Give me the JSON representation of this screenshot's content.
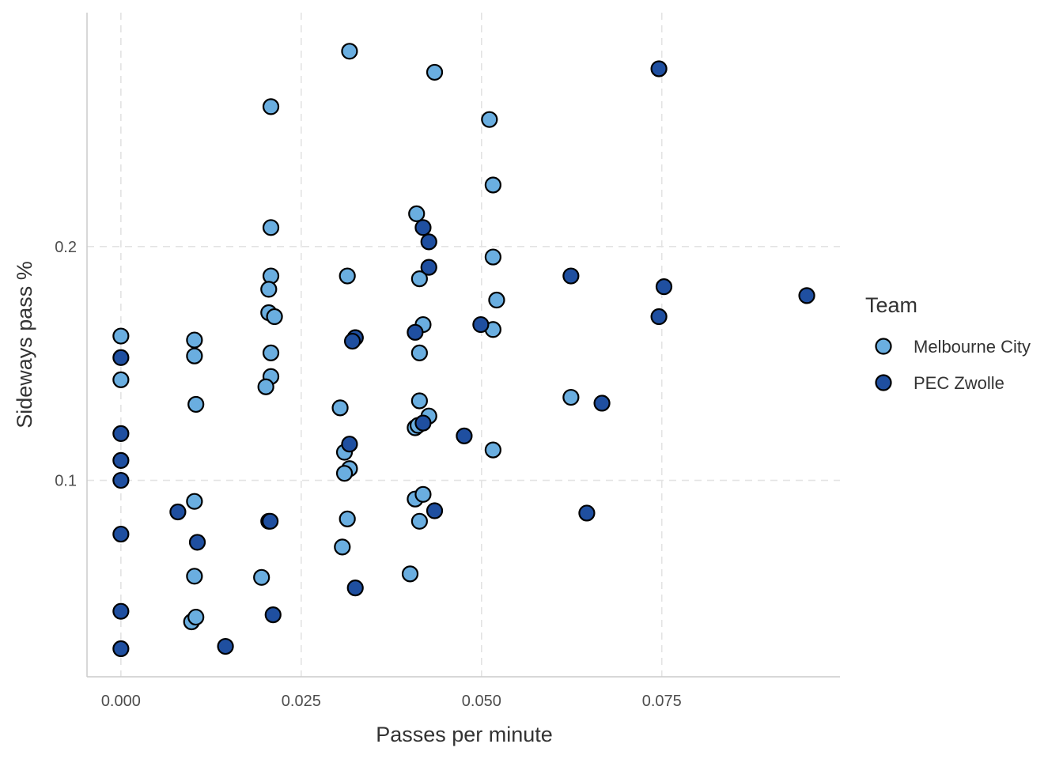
{
  "chart_data": {
    "type": "scatter",
    "xlabel": "Passes per minute",
    "ylabel": "Sideways pass %",
    "xlim": [
      -0.0047,
      0.0997
    ],
    "ylim": [
      0.016,
      0.3
    ],
    "x_ticks": [
      0.0,
      0.025,
      0.05,
      0.075
    ],
    "x_tick_labels": [
      "0.000",
      "0.025",
      "0.050",
      "0.075"
    ],
    "y_ticks": [
      0.1,
      0.2
    ],
    "y_tick_labels": [
      "0.1",
      "0.2"
    ],
    "grid": true,
    "legend": {
      "title": "Team",
      "position": "right",
      "entries": [
        {
          "name": "Melbourne City",
          "color": "#6aaee0"
        },
        {
          "name": "PEC Zwolle",
          "color": "#1f4fa0"
        }
      ]
    },
    "series": [
      {
        "name": "Melbourne City",
        "color": "#6aaee0",
        "points": [
          [
            0.0317,
            0.2835
          ],
          [
            0.0435,
            0.2745
          ],
          [
            0.0208,
            0.2598
          ],
          [
            0.0511,
            0.2543
          ],
          [
            0.0516,
            0.2263
          ],
          [
            0.041,
            0.214
          ],
          [
            0.0208,
            0.2081
          ],
          [
            0.0516,
            0.1955
          ],
          [
            0.0208,
            0.1874
          ],
          [
            0.0314,
            0.1874
          ],
          [
            0.0414,
            0.1862
          ],
          [
            0.0205,
            0.1817
          ],
          [
            0.0521,
            0.1771
          ],
          [
            0.0205,
            0.1717
          ],
          [
            0.0213,
            0.17
          ],
          [
            0.0419,
            0.1666
          ],
          [
            0.0516,
            0.1645
          ],
          [
            0.0,
            0.1617
          ],
          [
            0.0102,
            0.16
          ],
          [
            0.0325,
            0.161
          ],
          [
            0.0208,
            0.1545
          ],
          [
            0.0414,
            0.1545
          ],
          [
            0.0102,
            0.1532
          ],
          [
            0.0,
            0.143
          ],
          [
            0.0208,
            0.1444
          ],
          [
            0.0201,
            0.14
          ],
          [
            0.0414,
            0.134
          ],
          [
            0.0104,
            0.1325
          ],
          [
            0.0304,
            0.131
          ],
          [
            0.0427,
            0.1275
          ],
          [
            0.0408,
            0.1225
          ],
          [
            0.0412,
            0.1235
          ],
          [
            0.031,
            0.112
          ],
          [
            0.0516,
            0.113
          ],
          [
            0.0317,
            0.105
          ],
          [
            0.031,
            0.103
          ],
          [
            0.0408,
            0.092
          ],
          [
            0.0419,
            0.094
          ],
          [
            0.0102,
            0.091
          ],
          [
            0.0314,
            0.0835
          ],
          [
            0.0414,
            0.0825
          ],
          [
            0.0307,
            0.0715
          ],
          [
            0.0102,
            0.059
          ],
          [
            0.0195,
            0.0585
          ],
          [
            0.0401,
            0.06
          ],
          [
            0.0098,
            0.0395
          ],
          [
            0.0104,
            0.0415
          ],
          [
            0.0624,
            0.1355
          ]
        ]
      },
      {
        "name": "PEC Zwolle",
        "color": "#1f4fa0",
        "points": [
          [
            0.0746,
            0.276
          ],
          [
            0.0419,
            0.2081
          ],
          [
            0.0427,
            0.202
          ],
          [
            0.0427,
            0.1911
          ],
          [
            0.0624,
            0.1874
          ],
          [
            0.0753,
            0.1828
          ],
          [
            0.0951,
            0.179
          ],
          [
            0.0746,
            0.17
          ],
          [
            0.0499,
            0.1666
          ],
          [
            0.0408,
            0.1633
          ],
          [
            0.0325,
            0.161
          ],
          [
            0.0321,
            0.1595
          ],
          [
            0.0,
            0.1525
          ],
          [
            0.0667,
            0.133
          ],
          [
            0.0419,
            0.1245
          ],
          [
            0.0476,
            0.119
          ],
          [
            0.0,
            0.12
          ],
          [
            0.0317,
            0.1155
          ],
          [
            0.0,
            0.1085
          ],
          [
            0.0,
            0.1
          ],
          [
            0.0079,
            0.0865
          ],
          [
            0.0435,
            0.087
          ],
          [
            0.0646,
            0.086
          ],
          [
            0.0205,
            0.0825
          ],
          [
            0.0207,
            0.0825
          ],
          [
            0.0,
            0.077
          ],
          [
            0.0106,
            0.0735
          ],
          [
            0.0325,
            0.054
          ],
          [
            0.0,
            0.044
          ],
          [
            0.0211,
            0.0425
          ],
          [
            0.0145,
            0.029
          ],
          [
            0.0,
            0.028
          ]
        ]
      }
    ]
  }
}
